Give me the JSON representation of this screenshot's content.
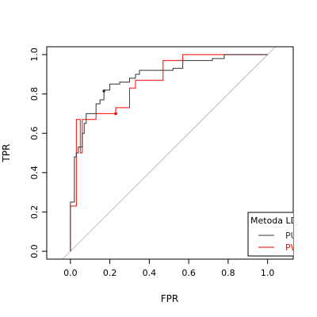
{
  "chart_data": {
    "type": "line",
    "xlabel": "FPR",
    "ylabel": "TPR",
    "xlim": [
      -0.12,
      1.13
    ],
    "ylim": [
      -0.04,
      1.04
    ],
    "x_ticks": [
      "0.0",
      "0.2",
      "0.4",
      "0.6",
      "0.8",
      "1.0"
    ],
    "y_ticks": [
      "0.0",
      "0.2",
      "0.4",
      "0.6",
      "0.8",
      "1.0"
    ],
    "legend": {
      "title": "Metoda LD",
      "placement": "bottom-right",
      "entries": [
        {
          "label": "PU",
          "color": "#333333"
        },
        {
          "label": "PW",
          "color": "#ff0000"
        }
      ]
    },
    "diagonal": {
      "color": "#bebebe"
    },
    "series": [
      {
        "name": "PU",
        "color": "#333333",
        "points": [
          [
            0.0,
            0.0
          ],
          [
            0.0,
            0.25
          ],
          [
            0.02,
            0.25
          ],
          [
            0.02,
            0.48
          ],
          [
            0.03,
            0.48
          ],
          [
            0.03,
            0.5
          ],
          [
            0.04,
            0.5
          ],
          [
            0.04,
            0.53
          ],
          [
            0.06,
            0.53
          ],
          [
            0.06,
            0.6
          ],
          [
            0.07,
            0.6
          ],
          [
            0.07,
            0.65
          ],
          [
            0.08,
            0.65
          ],
          [
            0.08,
            0.7
          ],
          [
            0.13,
            0.7
          ],
          [
            0.13,
            0.75
          ],
          [
            0.15,
            0.75
          ],
          [
            0.15,
            0.77
          ],
          [
            0.17,
            0.77
          ],
          [
            0.17,
            0.82
          ],
          [
            0.2,
            0.82
          ],
          [
            0.2,
            0.85
          ],
          [
            0.25,
            0.85
          ],
          [
            0.25,
            0.86
          ],
          [
            0.3,
            0.86
          ],
          [
            0.3,
            0.88
          ],
          [
            0.33,
            0.88
          ],
          [
            0.33,
            0.9
          ],
          [
            0.35,
            0.9
          ],
          [
            0.35,
            0.92
          ],
          [
            0.52,
            0.92
          ],
          [
            0.52,
            0.93
          ],
          [
            0.57,
            0.93
          ],
          [
            0.57,
            0.97
          ],
          [
            0.72,
            0.97
          ],
          [
            0.72,
            0.98
          ],
          [
            0.78,
            0.98
          ],
          [
            0.78,
            1.0
          ],
          [
            1.0,
            1.0
          ]
        ],
        "marker": [
          0.17,
          0.815
        ]
      },
      {
        "name": "PW",
        "color": "#ff0000",
        "points": [
          [
            0.0,
            0.0
          ],
          [
            0.0,
            0.23
          ],
          [
            0.03,
            0.23
          ],
          [
            0.03,
            0.67
          ],
          [
            0.05,
            0.67
          ],
          [
            0.05,
            0.5
          ],
          [
            0.06,
            0.5
          ],
          [
            0.06,
            0.67
          ],
          [
            0.13,
            0.67
          ],
          [
            0.13,
            0.7
          ],
          [
            0.23,
            0.7
          ],
          [
            0.23,
            0.73
          ],
          [
            0.3,
            0.73
          ],
          [
            0.3,
            0.83
          ],
          [
            0.33,
            0.83
          ],
          [
            0.33,
            0.87
          ],
          [
            0.47,
            0.87
          ],
          [
            0.47,
            0.97
          ],
          [
            0.57,
            0.97
          ],
          [
            0.57,
            1.0
          ],
          [
            1.0,
            1.0
          ]
        ],
        "marker": [
          0.23,
          0.7
        ]
      }
    ]
  }
}
